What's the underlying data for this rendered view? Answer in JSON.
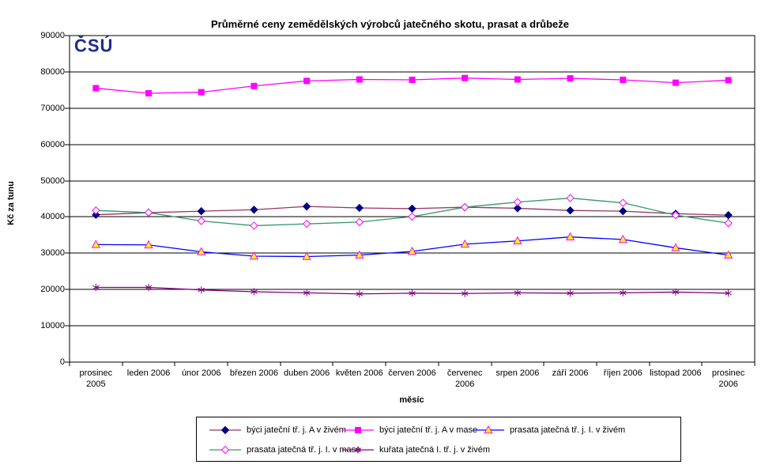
{
  "logo": {
    "text": "ČSÚ",
    "color": "#1e2d8c"
  },
  "chart_data": {
    "type": "line",
    "title": "Průměrné ceny zemědělských výrobců jatečného skotu, prasat a drůbeže",
    "xlabel": "měsíc",
    "ylabel": "Kč za tunu",
    "ylim": [
      0,
      90000
    ],
    "ytick_step": 10000,
    "yticks": [
      "0",
      "10000",
      "20000",
      "30000",
      "40000",
      "50000",
      "60000",
      "70000",
      "80000",
      "90000"
    ],
    "grid": "horizontal-black",
    "legend_position": "bottom-boxed",
    "categories": [
      "prosinec 2005",
      "leden 2006",
      "únor 2006",
      "březen 2006",
      "duben 2006",
      "květen 2006",
      "červen 2006",
      "červenec 2006",
      "srpen 2006",
      "září 2006",
      "říjen 2006",
      "listopad 2006",
      "prosinec 2006"
    ],
    "category_tick_lines": [
      [
        "prosinec",
        "2005"
      ],
      [
        "leden 2006"
      ],
      [
        "únor 2006"
      ],
      [
        "březen 2006"
      ],
      [
        "duben 2006"
      ],
      [
        "květen 2006"
      ],
      [
        "červen 2006"
      ],
      [
        "červenec",
        "2006"
      ],
      [
        "srpen 2006"
      ],
      [
        "září 2006"
      ],
      [
        "říjen 2006"
      ],
      [
        "listopad 2006"
      ],
      [
        "prosinec",
        "2006"
      ]
    ],
    "series": [
      {
        "name": "býci jateční tř. j. A v živém",
        "line_color": "#993366",
        "marker": {
          "shape": "diamond",
          "fill": "#000080",
          "stroke": "#000080"
        },
        "values": [
          40600,
          41200,
          41600,
          42000,
          42900,
          42500,
          42300,
          42700,
          42400,
          41800,
          41600,
          40900,
          40500
        ]
      },
      {
        "name": "býci jateční tř. j. A v mase",
        "line_color": "#FF00FF",
        "marker": {
          "shape": "square",
          "fill": "#FF00FF",
          "stroke": "#FF00FF"
        },
        "values": [
          75500,
          74100,
          74400,
          76100,
          77500,
          77900,
          77800,
          78300,
          77900,
          78200,
          77800,
          77000,
          77700
        ]
      },
      {
        "name": "prasata jatečná tř. j. I. v živém",
        "line_color": "#0000FF",
        "marker": {
          "shape": "triangle",
          "fill": "#FFFF00",
          "stroke": "#FF00FF"
        },
        "values": [
          32400,
          32300,
          30400,
          29200,
          29100,
          29500,
          30500,
          32500,
          33400,
          34500,
          33800,
          31500,
          29500
        ]
      },
      {
        "name": "prasata jatečná tř. j. I. v mase",
        "line_color": "#339966",
        "marker": {
          "shape": "diamond-open",
          "fill": "#FFFFFF",
          "stroke": "#FF00FF"
        },
        "values": [
          41800,
          41200,
          38900,
          37600,
          38100,
          38600,
          40100,
          42700,
          44100,
          45200,
          43900,
          40500,
          38300
        ]
      },
      {
        "name": "kuřata jatečná I. tř. j. v živém",
        "line_color": "#800080",
        "marker": {
          "shape": "asterisk",
          "fill": "#800080",
          "stroke": "#800080"
        },
        "values": [
          20600,
          20600,
          19900,
          19400,
          19100,
          18800,
          19000,
          18900,
          19100,
          19000,
          19100,
          19300,
          19000
        ]
      }
    ]
  }
}
